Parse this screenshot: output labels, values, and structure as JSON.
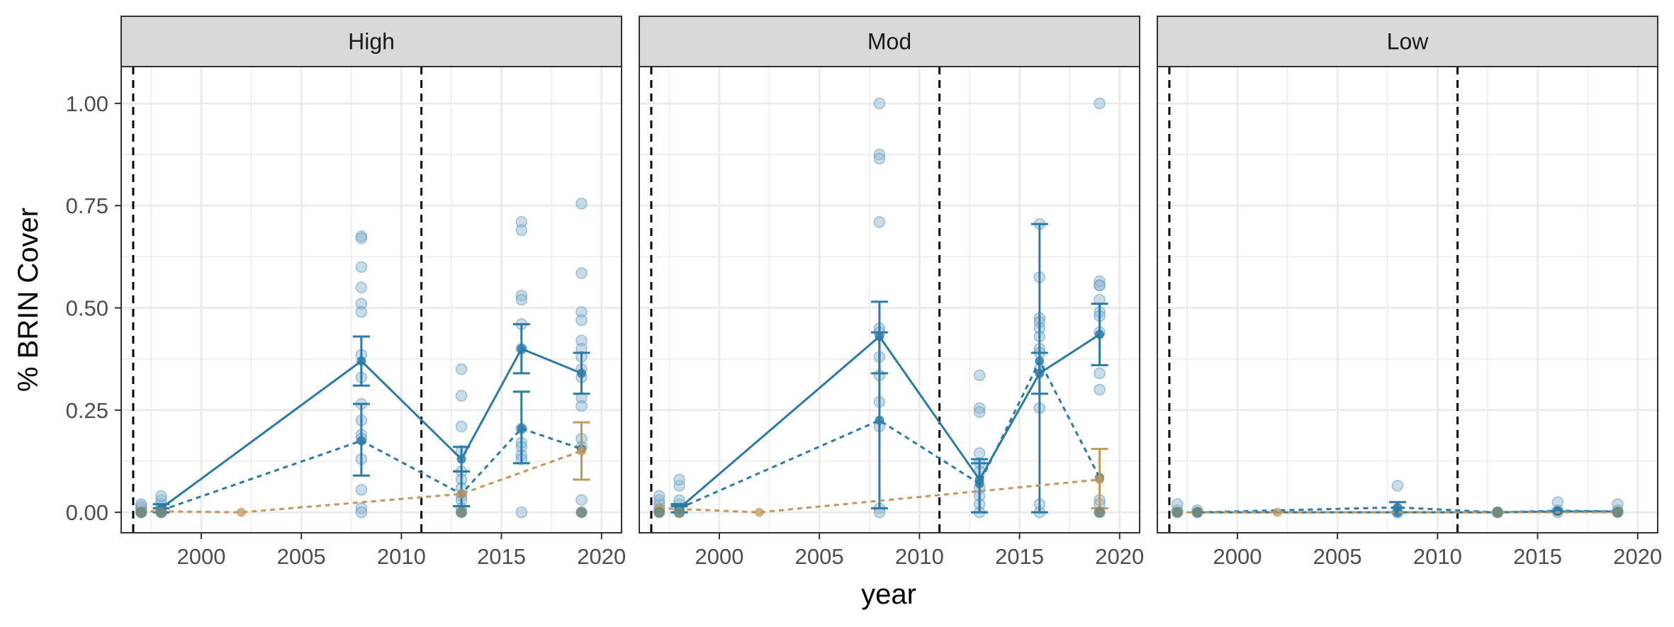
{
  "chart_data": {
    "type": "scatter",
    "ylabel": "% BRIN Cover",
    "xlabel": "year",
    "xlim": [
      1996,
      2021
    ],
    "ylim": [
      -0.05,
      1.09
    ],
    "x_ticks": [
      2000,
      2005,
      2010,
      2015,
      2020
    ],
    "x_tick_labels": [
      "2000",
      "2005",
      "2010",
      "2015",
      "2020"
    ],
    "y_ticks": [
      0,
      0.25,
      0.5,
      0.75,
      1
    ],
    "y_tick_labels": [
      "0.00",
      "0.25",
      "0.50",
      "0.75",
      "1.00"
    ],
    "grid": true,
    "reference_lines_x": [
      1996.6,
      2011
    ],
    "colors": {
      "blue": "#2a7ba8",
      "tan": "#c19a5b",
      "strip_fill": "#d9d9d9",
      "grid": "#ebebeb",
      "panel_border": "#333333",
      "points": "#8fb9d4",
      "dark_points": "#6f8a7c"
    },
    "panels": [
      {
        "label": "High",
        "points": [
          {
            "x": 1997,
            "ys": [
              0,
              0.005,
              0.01,
              0.015,
              0.02,
              0
            ]
          },
          {
            "x": 1998,
            "ys": [
              0,
              0.01,
              0.02,
              0.03,
              0.04,
              0
            ]
          },
          {
            "x": 2008,
            "ys": [
              0.675,
              0.67,
              0.6,
              0.55,
              0.51,
              0.49,
              0.385,
              0.33,
              0.265,
              0.225,
              0.19,
              0.18,
              0.13,
              0.055,
              0.01,
              0
            ]
          },
          {
            "x": 2013,
            "ys": [
              0.35,
              0.285,
              0.21,
              0.15,
              0.1,
              0.08,
              0.06,
              0.04,
              0.03,
              0.01,
              0
            ]
          },
          {
            "x": 2016,
            "ys": [
              0.71,
              0.69,
              0.53,
              0.52,
              0.46,
              0.4,
              0.205,
              0.17,
              0.16,
              0.14,
              0.13,
              0
            ]
          },
          {
            "x": 2019,
            "ys": [
              0.755,
              0.585,
              0.49,
              0.47,
              0.42,
              0.4,
              0.38,
              0.35,
              0.33,
              0.28,
              0.26,
              0.18,
              0.16,
              0.03,
              0
            ]
          }
        ],
        "dark_points": [
          {
            "x": 1997,
            "y": 0
          },
          {
            "x": 1998,
            "y": 0
          },
          {
            "x": 2013,
            "y": 0
          },
          {
            "x": 2019,
            "y": 0
          }
        ],
        "series": [
          {
            "name": "",
            "color": "blue",
            "style": "solid",
            "x": [
              1998,
              2008,
              2013,
              2016,
              2019
            ],
            "y": [
              0.01,
              0.37,
              0.13,
              0.4,
              0.34
            ],
            "err_low": [
              0.0,
              0.31,
              0.1,
              0.34,
              0.29
            ],
            "err_high": [
              0.02,
              0.43,
              0.16,
              0.46,
              0.39
            ]
          },
          {
            "name": "",
            "color": "blue",
            "style": "dashed",
            "x": [
              1998,
              2008,
              2013,
              2016,
              2019
            ],
            "y": [
              0.005,
              0.175,
              0.045,
              0.205,
              0.155
            ],
            "err_low": [
              0.0,
              0.09,
              0.015,
              0.12,
              null
            ],
            "err_high": [
              0.01,
              0.265,
              0.1,
              0.295,
              null
            ]
          },
          {
            "name": "",
            "color": "tan",
            "style": "dashed",
            "x": [
              1997,
              2002,
              2013,
              2019
            ],
            "y": [
              0.003,
              0.0,
              0.045,
              0.15
            ],
            "err_low": [
              null,
              null,
              null,
              0.08
            ],
            "err_high": [
              null,
              null,
              null,
              0.22
            ]
          }
        ]
      },
      {
        "label": "Mod",
        "points": [
          {
            "x": 1997,
            "ys": [
              0,
              0.005,
              0.01,
              0.02,
              0.03,
              0.04
            ]
          },
          {
            "x": 1998,
            "ys": [
              0,
              0.01,
              0.02,
              0.03,
              0.065,
              0.08
            ]
          },
          {
            "x": 2008,
            "ys": [
              1.0,
              0.875,
              0.865,
              0.71,
              0.45,
              0.44,
              0.38,
              0.335,
              0.27,
              0.21,
              0.01,
              0
            ]
          },
          {
            "x": 2013,
            "ys": [
              0.335,
              0.255,
              0.245,
              0.145,
              0.12,
              0.1,
              0.06,
              0.04,
              0.02,
              0
            ]
          },
          {
            "x": 2016,
            "ys": [
              0.705,
              0.575,
              0.475,
              0.465,
              0.45,
              0.43,
              0.4,
              0.39,
              0.35,
              0.255,
              0.02,
              0
            ]
          },
          {
            "x": 2019,
            "ys": [
              1.0,
              0.565,
              0.555,
              0.555,
              0.52,
              0.49,
              0.48,
              0.44,
              0.34,
              0.3,
              0.03,
              0.02,
              0
            ]
          }
        ],
        "dark_points": [
          {
            "x": 1997,
            "y": 0
          },
          {
            "x": 1998,
            "y": 0
          },
          {
            "x": 2019,
            "y": 0
          }
        ],
        "series": [
          {
            "name": "",
            "color": "blue",
            "style": "solid",
            "x": [
              1998,
              2008,
              2013,
              2016,
              2019
            ],
            "y": [
              0.01,
              0.43,
              0.08,
              0.34,
              0.435
            ],
            "err_low": [
              0.0,
              0.34,
              0.0,
              0.29,
              0.36
            ],
            "err_high": [
              0.02,
              0.515,
              0.13,
              0.39,
              0.51
            ]
          },
          {
            "name": "",
            "color": "blue",
            "style": "dashed",
            "x": [
              1998,
              2008,
              2013,
              2016,
              2019
            ],
            "y": [
              0.01,
              0.225,
              0.07,
              0.37,
              0.085
            ],
            "err_low": [
              0.0,
              0.01,
              0.0,
              0.0,
              null
            ],
            "err_high": [
              0.015,
              0.44,
              0.12,
              0.705,
              null
            ]
          },
          {
            "name": "",
            "color": "tan",
            "style": "dashed",
            "x": [
              1997,
              2002,
              2019
            ],
            "y": [
              0.01,
              0.0,
              0.08
            ],
            "err_low": [
              null,
              null,
              0.01
            ],
            "err_high": [
              null,
              null,
              0.155
            ]
          }
        ]
      },
      {
        "label": "Low",
        "points": [
          {
            "x": 1997,
            "ys": [
              0,
              0.005,
              0.02
            ]
          },
          {
            "x": 1998,
            "ys": [
              0,
              0.005
            ]
          },
          {
            "x": 2008,
            "ys": [
              0.065,
              0,
              0
            ]
          },
          {
            "x": 2013,
            "ys": [
              0,
              0
            ]
          },
          {
            "x": 2016,
            "ys": [
              0.025,
              0.005,
              0
            ]
          },
          {
            "x": 2019,
            "ys": [
              0.02,
              0.005,
              0
            ]
          }
        ],
        "dark_points": [
          {
            "x": 1997,
            "y": 0
          },
          {
            "x": 1998,
            "y": 0
          },
          {
            "x": 2013,
            "y": 0
          },
          {
            "x": 2019,
            "y": 0
          }
        ],
        "series": [
          {
            "name": "",
            "color": "blue",
            "style": "solid",
            "x": [
              1998,
              2008,
              2013,
              2016,
              2019
            ],
            "y": [
              0.0,
              0.0,
              0.0,
              0.002,
              0.002
            ],
            "err_low": [
              null,
              null,
              null,
              null,
              null
            ],
            "err_high": [
              null,
              null,
              null,
              null,
              null
            ]
          },
          {
            "name": "",
            "color": "blue",
            "style": "dashed",
            "x": [
              1998,
              2008,
              2013,
              2016,
              2019
            ],
            "y": [
              0.0,
              0.012,
              0.0,
              0.004,
              0.002
            ],
            "err_low": [
              null,
              0.0,
              null,
              null,
              null
            ],
            "err_high": [
              null,
              0.025,
              null,
              null,
              null
            ]
          },
          {
            "name": "",
            "color": "tan",
            "style": "dashed",
            "x": [
              1997,
              2002,
              2013,
              2019
            ],
            "y": [
              0.0,
              0.0,
              0.0,
              0.0
            ],
            "err_low": [
              null,
              null,
              null,
              null
            ],
            "err_high": [
              null,
              null,
              null,
              null
            ]
          }
        ]
      }
    ]
  }
}
